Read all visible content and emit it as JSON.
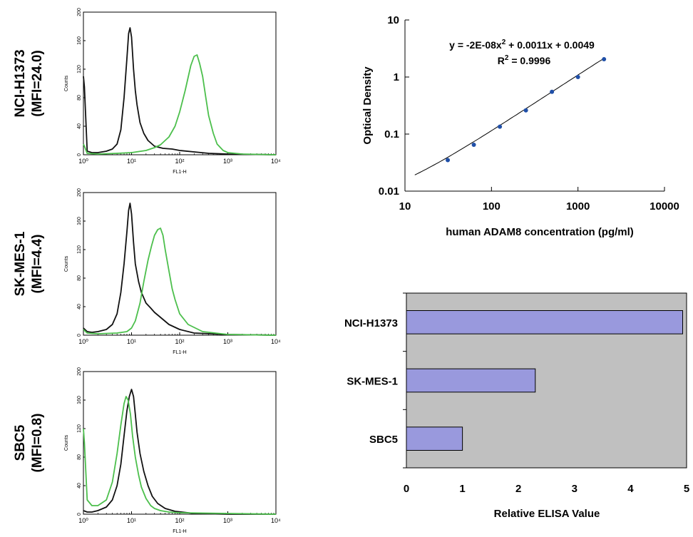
{
  "chart_data": [
    {
      "type": "line",
      "panel": "histogram",
      "row_label": "NCI-H1373",
      "row_sublabel": "(MFI=24.0)",
      "xlabel": "FL1-H",
      "ylabel": "Counts",
      "xscale": "log",
      "xlim": [
        1,
        10000
      ],
      "ylim": [
        0,
        200
      ],
      "y_ticks": [
        "0",
        "40",
        "80",
        "120",
        "160",
        "200"
      ],
      "x_ticks": [
        "10⁰",
        "10¹",
        "10²",
        "10³",
        "10⁴"
      ],
      "series": [
        {
          "color": "#111111",
          "x": [
            1,
            1.05,
            1.2,
            1.5,
            2,
            3,
            4,
            5,
            6,
            7,
            8,
            8.7,
            9.3,
            10,
            11,
            12,
            13,
            15,
            18,
            22,
            30,
            45,
            70,
            100,
            200,
            400,
            1000,
            10000
          ],
          "y": [
            110,
            95,
            5,
            3,
            3,
            5,
            8,
            15,
            35,
            80,
            135,
            170,
            178,
            165,
            120,
            90,
            70,
            45,
            30,
            20,
            12,
            9,
            8,
            6,
            4,
            2,
            1,
            0
          ]
        },
        {
          "color": "#4cbf4c",
          "x": [
            1,
            1.05,
            1.2,
            2,
            5,
            10,
            20,
            30,
            40,
            60,
            80,
            100,
            130,
            170,
            200,
            230,
            260,
            300,
            350,
            400,
            500,
            600,
            800,
            1000,
            2000,
            10000
          ],
          "y": [
            15,
            12,
            2,
            1,
            2,
            3,
            6,
            10,
            14,
            25,
            40,
            60,
            90,
            125,
            138,
            140,
            128,
            110,
            80,
            55,
            30,
            15,
            6,
            3,
            1,
            0
          ]
        }
      ]
    },
    {
      "type": "line",
      "panel": "histogram",
      "row_label": "SK-MES-1",
      "row_sublabel": "(MFI=4.4)",
      "xlabel": "FL1-H",
      "ylabel": "Counts",
      "xscale": "log",
      "xlim": [
        1,
        10000
      ],
      "ylim": [
        0,
        200
      ],
      "y_ticks": [
        "0",
        "40",
        "80",
        "120",
        "160",
        "200"
      ],
      "x_ticks": [
        "10⁰",
        "10¹",
        "10²",
        "10³",
        "10⁴"
      ],
      "series": [
        {
          "color": "#111111",
          "x": [
            1,
            1.2,
            1.5,
            2,
            3,
            4,
            5,
            6,
            7,
            8,
            8.7,
            9.3,
            10,
            11,
            12,
            14,
            16,
            20,
            25,
            30,
            40,
            60,
            100,
            200,
            1000,
            10000
          ],
          "y": [
            10,
            5,
            4,
            5,
            8,
            15,
            30,
            60,
            100,
            145,
            175,
            185,
            170,
            130,
            100,
            75,
            60,
            45,
            38,
            32,
            25,
            15,
            8,
            3,
            1,
            0
          ]
        },
        {
          "color": "#4cbf4c",
          "x": [
            1,
            1.2,
            2,
            5,
            8,
            10,
            12,
            15,
            18,
            22,
            26,
            30,
            35,
            40,
            45,
            50,
            60,
            70,
            80,
            100,
            150,
            300,
            1000,
            10000
          ],
          "y": [
            8,
            3,
            2,
            3,
            5,
            10,
            20,
            45,
            75,
            105,
            125,
            140,
            148,
            150,
            140,
            120,
            90,
            65,
            50,
            30,
            15,
            5,
            1,
            0
          ]
        }
      ]
    },
    {
      "type": "line",
      "panel": "histogram",
      "row_label": "SBC5",
      "row_sublabel": "(MFI=0.8)",
      "xlabel": "FL1-H",
      "ylabel": "Counts",
      "xscale": "log",
      "xlim": [
        1,
        10000
      ],
      "ylim": [
        0,
        200
      ],
      "y_ticks": [
        "0",
        "40",
        "80",
        "120",
        "160",
        "200"
      ],
      "x_ticks": [
        "10⁰",
        "10¹",
        "10²",
        "10³",
        "10⁴"
      ],
      "series": [
        {
          "color": "#111111",
          "x": [
            1,
            1.2,
            1.5,
            2,
            3,
            4,
            5,
            6,
            7,
            8,
            9,
            10,
            11,
            12,
            13,
            15,
            18,
            22,
            27,
            35,
            50,
            80,
            200,
            1000,
            10000
          ],
          "y": [
            5,
            3,
            3,
            5,
            10,
            20,
            40,
            70,
            110,
            145,
            165,
            175,
            165,
            140,
            115,
            85,
            60,
            40,
            25,
            15,
            8,
            4,
            1,
            0,
            0
          ]
        },
        {
          "color": "#4cbf4c",
          "x": [
            1,
            1.05,
            1.2,
            1.5,
            2,
            3,
            4,
            5,
            6,
            7,
            7.7,
            8.5,
            9.5,
            10.5,
            12,
            14,
            16,
            20,
            25,
            30,
            40,
            60,
            100,
            1000,
            10000
          ],
          "y": [
            120,
            100,
            20,
            12,
            12,
            20,
            45,
            85,
            125,
            155,
            165,
            160,
            140,
            110,
            80,
            55,
            38,
            22,
            12,
            8,
            5,
            3,
            2,
            1,
            0
          ]
        }
      ]
    },
    {
      "type": "scatter",
      "panel": "standard_curve",
      "xlabel": "human ADAM8 concentration (pg/ml)",
      "ylabel": "Optical Density",
      "xscale": "log",
      "yscale": "log",
      "xlim": [
        10,
        10000
      ],
      "ylim": [
        0.01,
        10
      ],
      "x_ticks": [
        "10",
        "100",
        "1000",
        "10000"
      ],
      "y_ticks": [
        "0.01",
        "0.1",
        "1",
        "10"
      ],
      "equation_main": "y = -2E-08x",
      "equation_sup": "2",
      "equation_rest": " + 0.0011x + 0.0049",
      "r2_main": "R",
      "r2_sup": "2",
      "r2_rest": " = 0.9996",
      "points": {
        "x": [
          31.25,
          62.5,
          125,
          250,
          500,
          1000,
          2000
        ],
        "y": [
          0.035,
          0.065,
          0.135,
          0.26,
          0.55,
          1.0,
          2.05
        ]
      },
      "fit_color": "#000000",
      "point_color": "#1f4fa8"
    },
    {
      "type": "bar",
      "orientation": "horizontal",
      "panel": "elisa",
      "categories": [
        "NCI-H1373",
        "SK-MES-1",
        "SBC5"
      ],
      "values": [
        4.93,
        2.3,
        1.0
      ],
      "xlabel": "Relative ELISA Value",
      "xlim": [
        0,
        5
      ],
      "x_ticks": [
        "0",
        "1",
        "2",
        "3",
        "4",
        "5"
      ],
      "bar_color": "#9999dd",
      "plot_bg": "#c0c0c0"
    }
  ]
}
